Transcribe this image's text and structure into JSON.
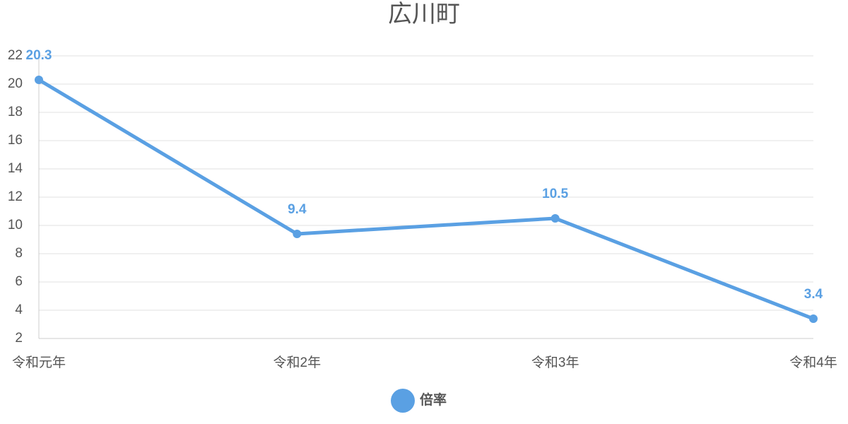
{
  "chart_data": {
    "type": "line",
    "title": "広川町",
    "categories": [
      "令和元年",
      "令和2年",
      "令和3年",
      "令和4年"
    ],
    "series": [
      {
        "name": "倍率",
        "color": "#5aa0e3",
        "values": [
          20.3,
          9.4,
          10.5,
          3.4
        ]
      }
    ],
    "ylim": [
      2,
      22
    ],
    "yticks": [
      2,
      4,
      6,
      8,
      10,
      12,
      14,
      16,
      18,
      20,
      22
    ],
    "grid": true,
    "legend": "bottom"
  }
}
